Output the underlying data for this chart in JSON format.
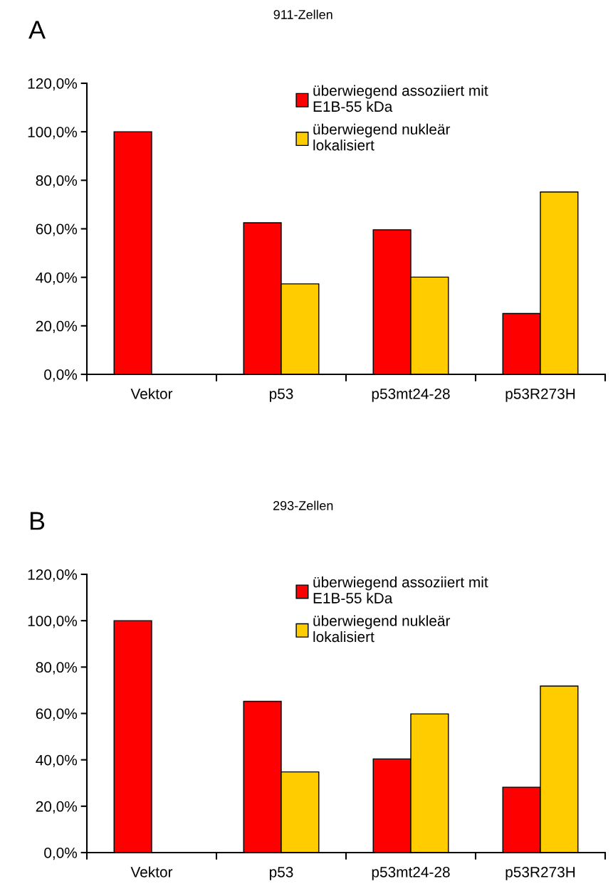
{
  "chart_data": [
    {
      "type": "bar",
      "title": "911-Zellen",
      "annotations": [
        "A"
      ],
      "categories": [
        "Vektor",
        "p53",
        "p53mt24-28",
        "p53R273H"
      ],
      "series": [
        {
          "name": "überwiegend assoziiert mit\nE1B-55 kDa",
          "color": "#ff0000",
          "values": [
            100,
            62.5,
            59.6,
            25.1
          ]
        },
        {
          "name": "überwiegend nukleär\nlokalisiert",
          "color": "#ffcc00",
          "values": [
            null,
            37.3,
            40.1,
            75.2
          ]
        }
      ],
      "ylim": [
        0,
        120
      ],
      "yticks": [
        {
          "value": 0,
          "label": "0,0%"
        },
        {
          "value": 20,
          "label": "20,0%"
        },
        {
          "value": 40,
          "label": "40,0%"
        },
        {
          "value": 60,
          "label": "60,0%"
        },
        {
          "value": 80,
          "label": "80,0%"
        },
        {
          "value": 100,
          "label": "100,0%"
        },
        {
          "value": 120,
          "label": "120,0%"
        }
      ],
      "grid": false,
      "legend": "top right"
    },
    {
      "type": "bar",
      "title": "293-Zellen",
      "annotations": [
        "B"
      ],
      "categories": [
        "Vektor",
        "p53",
        "p53mt24-28",
        "p53R273H"
      ],
      "series": [
        {
          "name": "überwiegend assoziiert mit\nE1B-55 kDa",
          "color": "#ff0000",
          "values": [
            100,
            65.2,
            40.4,
            28.2
          ]
        },
        {
          "name": "überwiegend nukleär\nlokalisiert",
          "color": "#ffcc00",
          "values": [
            null,
            34.8,
            59.8,
            71.8
          ]
        }
      ],
      "ylim": [
        0,
        120
      ],
      "yticks": [
        {
          "value": 0,
          "label": "0,0%"
        },
        {
          "value": 20,
          "label": "20,0%"
        },
        {
          "value": 40,
          "label": "40,0%"
        },
        {
          "value": 60,
          "label": "60,0%"
        },
        {
          "value": 80,
          "label": "80,0%"
        },
        {
          "value": 100,
          "label": "100,0%"
        },
        {
          "value": 120,
          "label": "120,0%"
        }
      ],
      "grid": false,
      "legend": "top right"
    }
  ]
}
